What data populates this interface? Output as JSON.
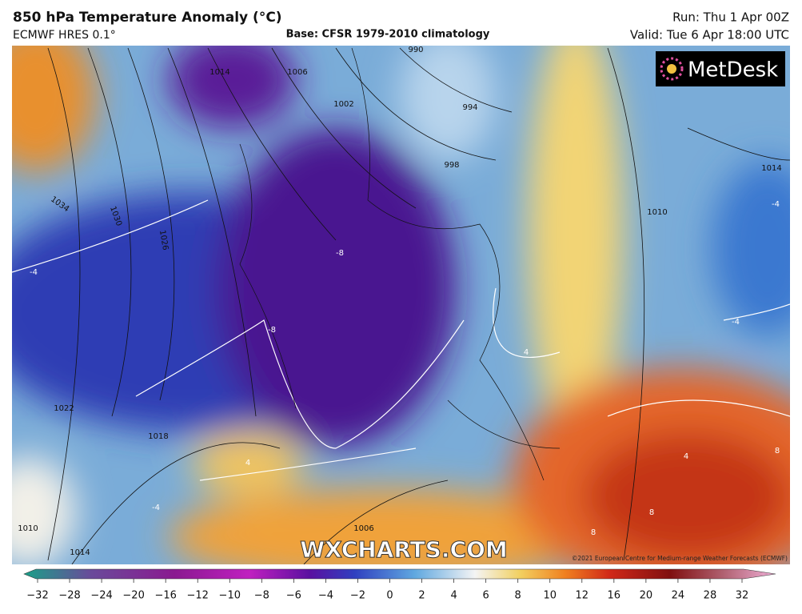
{
  "header": {
    "title": "850 hPa Temperature Anomaly (°C)",
    "model": "ECMWF HRES 0.1°",
    "base": "Base: CFSR 1979-2010 climatology",
    "run": "Run: Thu 1 Apr 00Z",
    "valid": "Valid: Tue 6 Apr 18:00 UTC"
  },
  "logo": "MetDesk",
  "watermark": "WXCHARTS.COM",
  "copyright": "©2021 European Centre for Medium-range Weather Forecasts (ECMWF)",
  "map_labels": [
    "990",
    "994",
    "998",
    "1002",
    "1006",
    "1014",
    "1034",
    "1030",
    "1026",
    "1022",
    "1018",
    "1010",
    "1014",
    "1006",
    "1010",
    "1014",
    "-4",
    "-8",
    "-8",
    "-4",
    "-4",
    "4",
    "4",
    "8",
    "8",
    "8",
    "4",
    "-4"
  ],
  "colorbar": {
    "ticks": [
      {
        "value": -32,
        "label": "−32"
      },
      {
        "value": -28,
        "label": "−28"
      },
      {
        "value": -24,
        "label": "−24"
      },
      {
        "value": -20,
        "label": "−20"
      },
      {
        "value": -16,
        "label": "−16"
      },
      {
        "value": -12,
        "label": "−12"
      },
      {
        "value": -10,
        "label": "−10"
      },
      {
        "value": -8,
        "label": "−8"
      },
      {
        "value": -6,
        "label": "−6"
      },
      {
        "value": -4,
        "label": "−4"
      },
      {
        "value": -2,
        "label": "−2"
      },
      0,
      2,
      4,
      6,
      8,
      10,
      12,
      16,
      20,
      24,
      28,
      32
    ]
  }
}
